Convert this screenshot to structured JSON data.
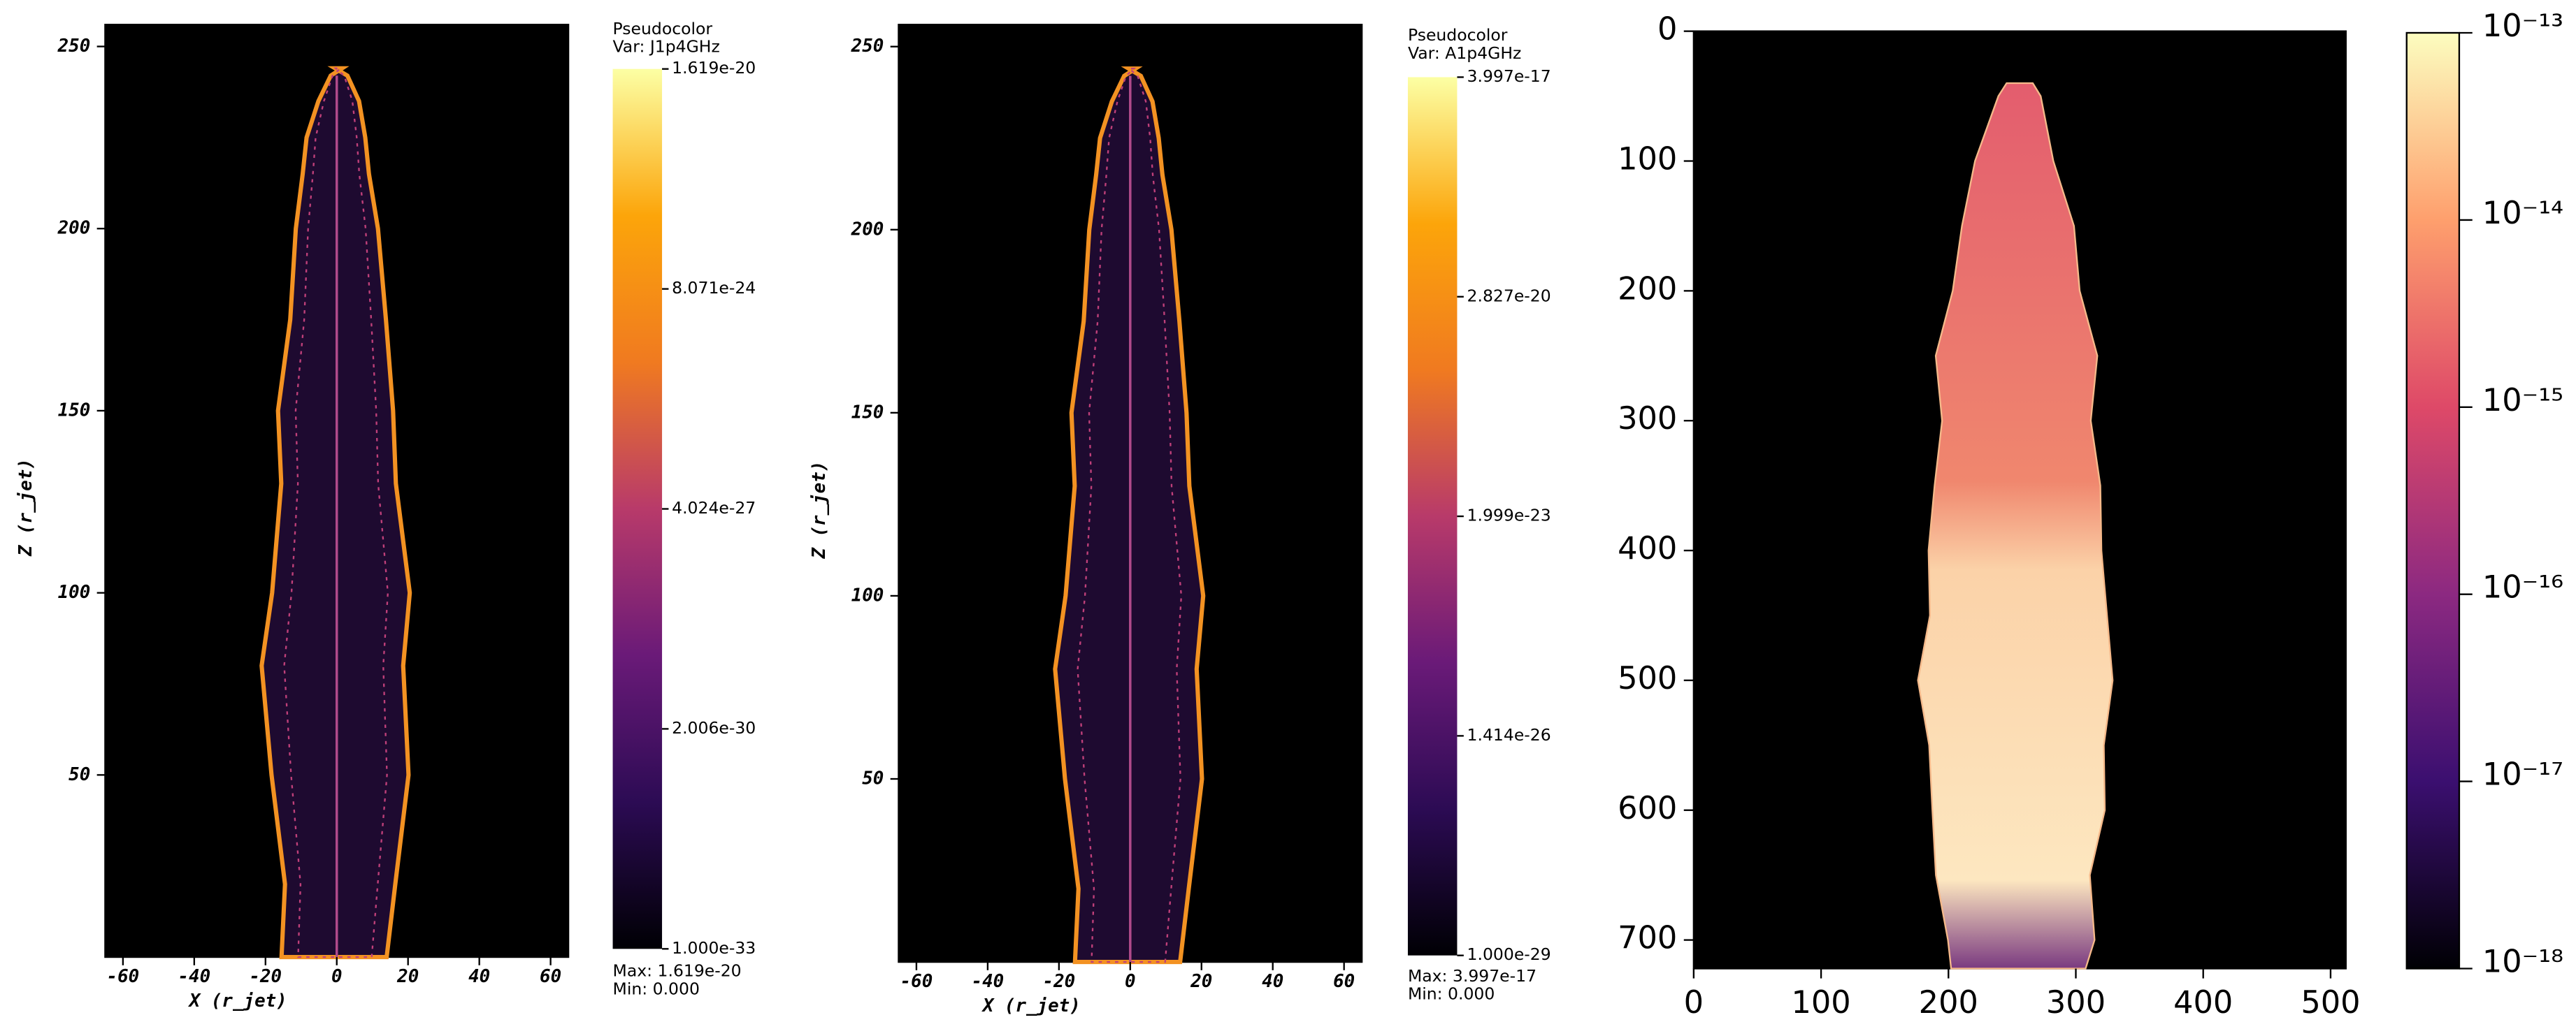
{
  "chart_data": [
    {
      "type": "heatmap",
      "xlabel": "X (r_jet)",
      "ylabel": "Z (r_jet)",
      "xlim": [
        -65,
        65
      ],
      "ylim": [
        0,
        256
      ],
      "xticks": [
        -60,
        -40,
        -20,
        0,
        20,
        40,
        60
      ],
      "yticks": [
        50,
        100,
        150,
        200,
        250
      ],
      "colorbar": {
        "title": "Pseudocolor",
        "variable": "Var: J1p4GHz",
        "scale": "log",
        "lim": [
          1e-33,
          1.619e-20
        ],
        "colormap": [
          "#000004",
          "#2c0b54",
          "#6a1a78",
          "#b83a6a",
          "#f07a20",
          "#fca50a",
          "#fcffa4"
        ],
        "ticks": [
          {
            "value": 1e-33,
            "label": "1.000e-33"
          },
          {
            "value": 2.006e-30,
            "label": "2.006e-30"
          },
          {
            "value": 4.024e-27,
            "label": "4.024e-27"
          },
          {
            "value": 8.071e-24,
            "label": "8.071e-24"
          },
          {
            "value": 1.619e-20,
            "label": "1.619e-20"
          }
        ]
      },
      "max_label": "Max:  1.619e-20",
      "min_label": "Min:  0.000"
    },
    {
      "type": "heatmap",
      "xlabel": "X (r_jet)",
      "ylabel": "Z (r_jet)",
      "xlim": [
        -65,
        65
      ],
      "ylim": [
        0,
        256
      ],
      "xticks": [
        -60,
        -40,
        -20,
        0,
        20,
        40,
        60
      ],
      "yticks": [
        50,
        100,
        150,
        200,
        250
      ],
      "colorbar": {
        "title": "Pseudocolor",
        "variable": "Var: A1p4GHz",
        "scale": "log",
        "lim": [
          1e-29,
          3.997e-17
        ],
        "colormap": [
          "#000004",
          "#2c0b54",
          "#6a1a78",
          "#b83a6a",
          "#f07a20",
          "#fca50a",
          "#fcffa4"
        ],
        "ticks": [
          {
            "value": 1e-29,
            "label": "1.000e-29"
          },
          {
            "value": 1.414e-26,
            "label": "1.414e-26"
          },
          {
            "value": 1.999e-23,
            "label": "1.999e-23"
          },
          {
            "value": 2.827e-20,
            "label": "2.827e-20"
          },
          {
            "value": 3.997e-17,
            "label": "3.997e-17"
          }
        ]
      },
      "max_label": "Max:  3.997e-17",
      "min_label": "Min:  0.000"
    },
    {
      "type": "image",
      "xlim": [
        0,
        512
      ],
      "ylim": [
        722,
        0
      ],
      "xticks": [
        0,
        100,
        200,
        300,
        400,
        500
      ],
      "yticks": [
        0,
        100,
        200,
        300,
        400,
        500,
        600,
        700
      ],
      "colorbar": {
        "scale": "log",
        "lim": [
          1e-18,
          1e-13
        ],
        "colormap": [
          "#000004",
          "#3b0f70",
          "#8c2981",
          "#de4968",
          "#fe9f6d",
          "#fcfdbf"
        ],
        "ticks": [
          {
            "value": 1e-18,
            "label": "10⁻¹⁸"
          },
          {
            "value": 1e-17,
            "label": "10⁻¹⁷"
          },
          {
            "value": 1e-16,
            "label": "10⁻¹⁶"
          },
          {
            "value": 1e-15,
            "label": "10⁻¹⁵"
          },
          {
            "value": 1e-14,
            "label": "10⁻¹⁴"
          },
          {
            "value": 1e-13,
            "label": "10⁻¹³"
          }
        ]
      }
    }
  ]
}
